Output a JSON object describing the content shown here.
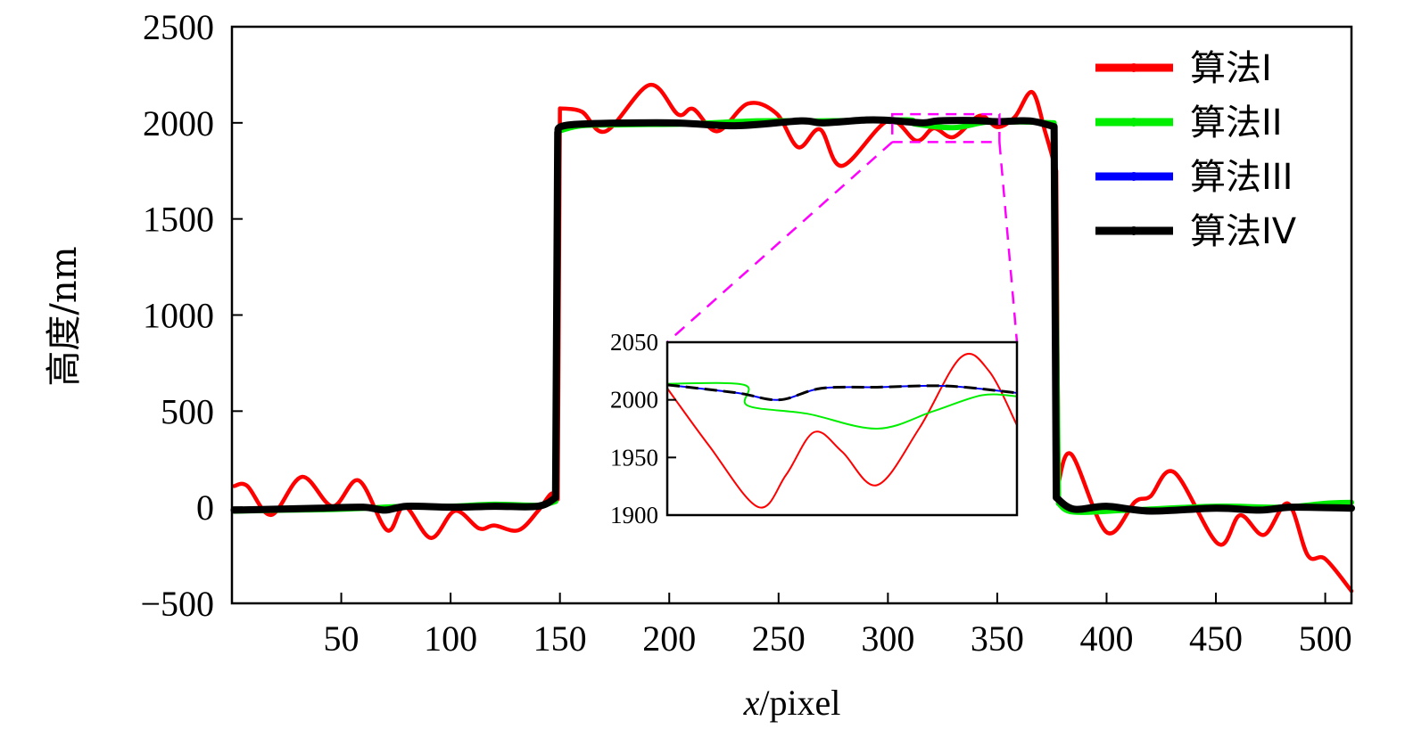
{
  "chart_data": {
    "type": "line",
    "title": "",
    "xlabel_var": "x",
    "xlabel_unit": "/pixel",
    "ylabel": "高度/nm",
    "xlim": [
      0,
      512
    ],
    "ylim": [
      -500,
      2500
    ],
    "xticks": [
      50,
      100,
      150,
      200,
      250,
      300,
      350,
      400,
      450,
      500
    ],
    "yticks": [
      -500,
      0,
      500,
      1000,
      1500,
      2000,
      2500
    ],
    "ytick_labels": [
      "−500",
      "0",
      "500",
      "1000",
      "1500",
      "2000",
      "2500"
    ],
    "grid": false,
    "legend_position": "top-right",
    "series": [
      {
        "name": "算法I",
        "color": "#ff0000",
        "points": [
          [
            1,
            110
          ],
          [
            7,
            111
          ],
          [
            18,
            -40
          ],
          [
            32,
            158
          ],
          [
            46,
            5
          ],
          [
            58,
            139
          ],
          [
            71,
            -120
          ],
          [
            79,
            5
          ],
          [
            91,
            -160
          ],
          [
            102,
            -19
          ],
          [
            113,
            -110
          ],
          [
            120,
            -95
          ],
          [
            131,
            -120
          ],
          [
            140,
            -19
          ],
          [
            146,
            70
          ],
          [
            149,
            40
          ],
          [
            150,
            2075
          ],
          [
            160,
            2058
          ],
          [
            171,
            1956
          ],
          [
            191,
            2197
          ],
          [
            204,
            2044
          ],
          [
            211,
            2072
          ],
          [
            222,
            1956
          ],
          [
            236,
            2100
          ],
          [
            249,
            2049
          ],
          [
            259,
            1873
          ],
          [
            269,
            1966
          ],
          [
            279,
            1776
          ],
          [
            300,
            2010
          ],
          [
            313,
            1907
          ],
          [
            321,
            1972
          ],
          [
            330,
            1926
          ],
          [
            342,
            2037
          ],
          [
            350,
            1978
          ],
          [
            358,
            2030
          ],
          [
            366,
            2160
          ],
          [
            372,
            1950
          ],
          [
            377,
            1750
          ],
          [
            378,
            130
          ],
          [
            384,
            274
          ],
          [
            400,
            -130
          ],
          [
            413,
            28
          ],
          [
            420,
            56
          ],
          [
            431,
            181
          ],
          [
            451,
            -190
          ],
          [
            461,
            -42
          ],
          [
            472,
            -144
          ],
          [
            483,
            19
          ],
          [
            492,
            -250
          ],
          [
            500,
            -269
          ],
          [
            512,
            -436
          ]
        ]
      },
      {
        "name": "算法II",
        "color": "#00ee00",
        "points": [
          [
            1,
            -20
          ],
          [
            25,
            -15
          ],
          [
            50,
            -10
          ],
          [
            80,
            5
          ],
          [
            100,
            5
          ],
          [
            120,
            15
          ],
          [
            140,
            10
          ],
          [
            148,
            30
          ],
          [
            149,
            1955
          ],
          [
            160,
            1985
          ],
          [
            180,
            1990
          ],
          [
            210,
            1995
          ],
          [
            240,
            2010
          ],
          [
            270,
            2010
          ],
          [
            300,
            2014
          ],
          [
            311,
            2014
          ],
          [
            312,
            1995
          ],
          [
            330,
            1975
          ],
          [
            345,
            2004
          ],
          [
            360,
            2005
          ],
          [
            376,
            2000
          ],
          [
            378,
            20
          ],
          [
            385,
            -25
          ],
          [
            410,
            -15
          ],
          [
            450,
            5
          ],
          [
            480,
            0
          ],
          [
            500,
            20
          ],
          [
            512,
            25
          ]
        ]
      },
      {
        "name": "算法III",
        "color": "#0000ff",
        "points": [
          [
            1,
            -15
          ],
          [
            20,
            -10
          ],
          [
            40,
            -5
          ],
          [
            60,
            0
          ],
          [
            70,
            -15
          ],
          [
            80,
            5
          ],
          [
            100,
            0
          ],
          [
            120,
            5
          ],
          [
            140,
            5
          ],
          [
            148,
            50
          ],
          [
            149,
            1950
          ],
          [
            155,
            1990
          ],
          [
            200,
            2000
          ],
          [
            230,
            1985
          ],
          [
            260,
            2010
          ],
          [
            270,
            2000
          ],
          [
            290,
            2015
          ],
          [
            300,
            2013
          ],
          [
            316,
            2000
          ],
          [
            323,
            2010
          ],
          [
            340,
            2012
          ],
          [
            350,
            2006
          ],
          [
            365,
            2010
          ],
          [
            376,
            1980
          ],
          [
            377,
            50
          ],
          [
            385,
            -10
          ],
          [
            400,
            5
          ],
          [
            420,
            -20
          ],
          [
            450,
            -5
          ],
          [
            470,
            -15
          ],
          [
            485,
            0
          ],
          [
            512,
            -5
          ]
        ]
      },
      {
        "name": "算法IV",
        "color": "#000000",
        "points": [
          [
            1,
            -15
          ],
          [
            20,
            -10
          ],
          [
            40,
            -5
          ],
          [
            60,
            0
          ],
          [
            70,
            -15
          ],
          [
            80,
            5
          ],
          [
            100,
            0
          ],
          [
            120,
            5
          ],
          [
            140,
            5
          ],
          [
            148,
            50
          ],
          [
            149,
            1950
          ],
          [
            155,
            1990
          ],
          [
            200,
            2000
          ],
          [
            230,
            1985
          ],
          [
            260,
            2010
          ],
          [
            270,
            2000
          ],
          [
            290,
            2015
          ],
          [
            300,
            2013
          ],
          [
            316,
            2000
          ],
          [
            323,
            2010
          ],
          [
            340,
            2012
          ],
          [
            350,
            2006
          ],
          [
            365,
            2010
          ],
          [
            376,
            1980
          ],
          [
            377,
            50
          ],
          [
            385,
            -10
          ],
          [
            400,
            5
          ],
          [
            420,
            -20
          ],
          [
            450,
            -5
          ],
          [
            470,
            -15
          ],
          [
            485,
            0
          ],
          [
            512,
            -5
          ]
        ]
      }
    ],
    "inset": {
      "xlim": [
        300,
        350
      ],
      "ylim": [
        1900,
        2050
      ],
      "yticks": [
        1900,
        1950,
        2000,
        2050
      ],
      "zoom_box": {
        "x": [
          302,
          351
        ],
        "y": [
          1900,
          2045
        ]
      },
      "box_color": "#ff00ff",
      "series": [
        {
          "name": "算法I",
          "color": "#ff0000",
          "points": [
            [
              300,
              2010
            ],
            [
              306,
              1960
            ],
            [
              313,
              1907
            ],
            [
              317,
              1935
            ],
            [
              321,
              1972
            ],
            [
              325,
              1955
            ],
            [
              330,
              1926
            ],
            [
              336,
              1975
            ],
            [
              342,
              2037
            ],
            [
              346,
              2025
            ],
            [
              350,
              1978
            ]
          ]
        },
        {
          "name": "算法II",
          "color": "#00ee00",
          "points": [
            [
              300,
              2014
            ],
            [
              311,
              2013
            ],
            [
              311.5,
              1995
            ],
            [
              320,
              1988
            ],
            [
              330,
              1975
            ],
            [
              338,
              1990
            ],
            [
              345,
              2004
            ],
            [
              350,
              2003
            ]
          ]
        },
        {
          "name": "算法III",
          "color": "#0000ff",
          "points": [
            [
              300,
              2013
            ],
            [
              310,
              2006
            ],
            [
              316,
              2000
            ],
            [
              322,
              2010
            ],
            [
              330,
              2011
            ],
            [
              340,
              2012
            ],
            [
              350,
              2006
            ]
          ]
        },
        {
          "name": "算法IV",
          "color": "#000000",
          "dashed": true,
          "points": [
            [
              300,
              2013
            ],
            [
              310,
              2006
            ],
            [
              316,
              2000
            ],
            [
              322,
              2010
            ],
            [
              330,
              2011
            ],
            [
              340,
              2012
            ],
            [
              350,
              2006
            ]
          ]
        }
      ]
    }
  }
}
